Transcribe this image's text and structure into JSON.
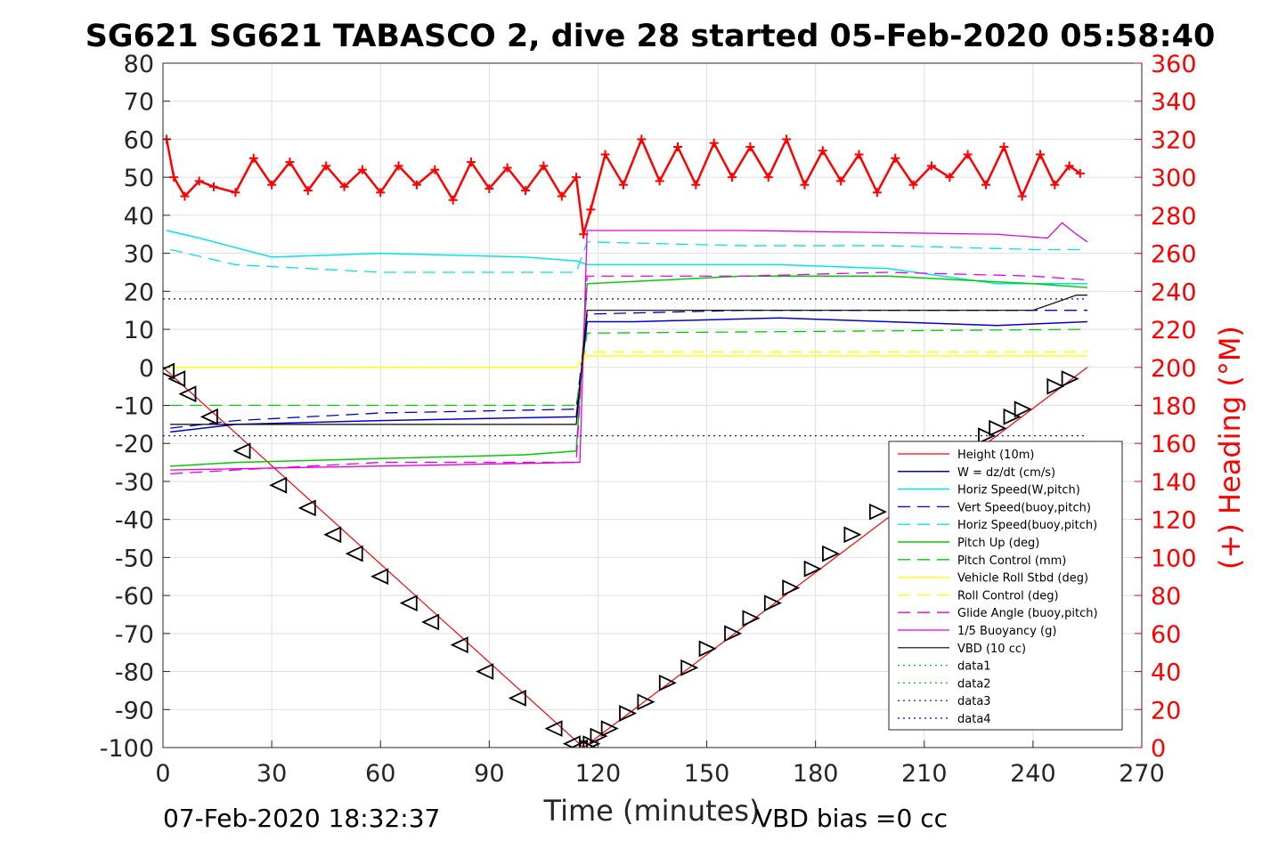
{
  "chart_data": {
    "type": "line",
    "title": "SG621 SG621 TABASCO 2, dive 28 started 05-Feb-2020 05:58:40",
    "xlabel": "Time (minutes)",
    "ylabel_right": "(+) Heading (°M)",
    "xlim": [
      0,
      270
    ],
    "ylim_left": [
      -100,
      80
    ],
    "ylim_right": [
      0,
      360
    ],
    "x_ticks": [
      0,
      30,
      60,
      90,
      120,
      150,
      180,
      210,
      240,
      270
    ],
    "y_ticks_left": [
      -100,
      -90,
      -80,
      -70,
      -60,
      -50,
      -40,
      -30,
      -20,
      -10,
      0,
      10,
      20,
      30,
      40,
      50,
      60,
      70,
      80
    ],
    "y_ticks_right": [
      0,
      20,
      40,
      60,
      80,
      100,
      120,
      140,
      160,
      180,
      200,
      220,
      240,
      260,
      280,
      300,
      320,
      340,
      360
    ],
    "grid": true,
    "legend_position": "bottom-right",
    "footer_date": "07-Feb-2020 18:32:37",
    "footer_vbd": "VBD bias =0 cc",
    "colors": {
      "height": "#ff0000",
      "w": "#0000cc",
      "horiz_w": "#00e5e5",
      "vert_buoy": "#0000cc",
      "horiz_buoy": "#00e5e5",
      "pitch_up": "#00cc00",
      "pitch_control": "#00cc00",
      "roll": "#ffff00",
      "roll_control": "#ffff00",
      "glide_angle": "#e600e6",
      "buoyancy": "#e600e6",
      "vbd": "#000000",
      "heading": "#ff0000"
    },
    "series": [
      {
        "name": "Height (10m)",
        "x": [
          0,
          116,
          255
        ],
        "y": [
          0,
          -100,
          0
        ]
      },
      {
        "name": "W = dz/dt (cm/s)",
        "x": [
          2,
          20,
          60,
          114,
          117,
          130,
          170,
          200,
          230,
          255
        ],
        "y": [
          -17,
          -15,
          -14,
          -13,
          12,
          12,
          13,
          12,
          11,
          12
        ]
      },
      {
        "name": "Horiz Speed(W,pitch)",
        "x": [
          1,
          10,
          30,
          60,
          100,
          114,
          117,
          130,
          170,
          200,
          230,
          255
        ],
        "y": [
          36,
          34,
          29,
          30,
          29,
          28,
          27,
          27,
          27,
          26,
          22,
          22
        ]
      },
      {
        "name": "Vert Speed(buoy,pitch)",
        "x": [
          2,
          20,
          60,
          114,
          117,
          160,
          200,
          240,
          255
        ],
        "y": [
          -16,
          -14,
          -12,
          -11,
          14,
          15,
          15,
          15,
          15
        ]
      },
      {
        "name": "Horiz Speed(buoy,pitch)",
        "x": [
          2,
          20,
          60,
          114,
          117,
          160,
          200,
          240,
          255
        ],
        "y": [
          31,
          27,
          25,
          25,
          33,
          32,
          32,
          31,
          31
        ]
      },
      {
        "name": "Pitch Up (deg)",
        "x": [
          2,
          20,
          60,
          100,
          114,
          117,
          160,
          200,
          240,
          255
        ],
        "y": [
          -26,
          -25,
          -24,
          -23,
          -22,
          22,
          24,
          24,
          22,
          21
        ]
      },
      {
        "name": "Pitch Control (mm)",
        "x": [
          2,
          114,
          117,
          255
        ],
        "y": [
          -10,
          -10,
          9,
          10
        ]
      },
      {
        "name": "Vehicle Roll Stbd (deg)",
        "x": [
          2,
          114,
          117,
          255
        ],
        "y": [
          0,
          0,
          3,
          3
        ]
      },
      {
        "name": "Roll Control (deg)",
        "x": [
          2,
          114,
          117,
          255
        ],
        "y": [
          0,
          0,
          4,
          4
        ]
      },
      {
        "name": "Glide Angle (buoy,pitch)",
        "x": [
          2,
          20,
          60,
          114,
          117,
          160,
          200,
          240,
          255
        ],
        "y": [
          -28,
          -27,
          -25,
          -25,
          24,
          24,
          25,
          24,
          23
        ]
      },
      {
        "name": "1/5 Buoyancy (g)",
        "x": [
          2,
          114,
          115,
          117,
          160,
          230,
          244,
          248,
          252,
          255
        ],
        "y": [
          -27,
          -25,
          -25,
          36,
          36,
          35,
          34,
          38,
          35,
          33
        ]
      },
      {
        "name": "VBD (10 cc)",
        "x": [
          2,
          114,
          117,
          240,
          246,
          252,
          255
        ],
        "y": [
          -15,
          -15,
          15,
          15,
          17,
          19,
          19
        ]
      },
      {
        "name": "data1",
        "x": [],
        "y": []
      },
      {
        "name": "data2",
        "x": [],
        "y": []
      },
      {
        "name": "data3",
        "x": [
          0,
          255
        ],
        "y": [
          18,
          18
        ]
      },
      {
        "name": "data4",
        "x": [
          0,
          255
        ],
        "y": [
          -18,
          -18
        ]
      }
    ],
    "heading": {
      "name": "(+) Heading (°M)",
      "x": [
        1,
        3,
        6,
        10,
        14,
        20,
        25,
        30,
        35,
        40,
        45,
        50,
        55,
        60,
        65,
        70,
        75,
        80,
        85,
        90,
        95,
        100,
        105,
        110,
        114,
        116,
        118,
        122,
        127,
        132,
        137,
        142,
        147,
        152,
        157,
        162,
        167,
        172,
        177,
        182,
        187,
        192,
        197,
        202,
        207,
        212,
        217,
        222,
        227,
        232,
        237,
        242,
        246,
        250,
        253
      ],
      "y": [
        320,
        300,
        290,
        298,
        295,
        292,
        310,
        296,
        308,
        293,
        306,
        295,
        304,
        292,
        306,
        296,
        304,
        288,
        308,
        294,
        305,
        293,
        306,
        290,
        300,
        270,
        283,
        312,
        296,
        320,
        298,
        316,
        296,
        318,
        300,
        316,
        300,
        320,
        296,
        314,
        298,
        312,
        292,
        310,
        296,
        306,
        300,
        312,
        296,
        316,
        290,
        312,
        296,
        306,
        302
      ]
    },
    "markers": {
      "x": [
        1,
        4,
        7,
        13,
        22,
        32,
        40,
        47,
        53,
        60,
        68,
        74,
        82,
        89,
        98,
        108,
        113,
        115,
        117,
        118,
        120,
        123,
        128,
        133,
        139,
        145,
        150,
        157,
        162,
        168,
        173,
        179,
        184,
        190,
        197,
        227,
        230,
        234,
        237,
        246,
        250
      ],
      "y": [
        -1,
        -3,
        -7,
        -13,
        -22,
        -31,
        -37,
        -44,
        -49,
        -55,
        -62,
        -67,
        -73,
        -80,
        -87,
        -95,
        -99,
        -100,
        -100,
        -99,
        -97,
        -95,
        -91,
        -88,
        -83,
        -79,
        -74,
        -70,
        -66,
        -62,
        -58,
        -53,
        -49,
        -44,
        -38,
        -18,
        -16,
        -13,
        -11,
        -5,
        -3
      ]
    }
  }
}
